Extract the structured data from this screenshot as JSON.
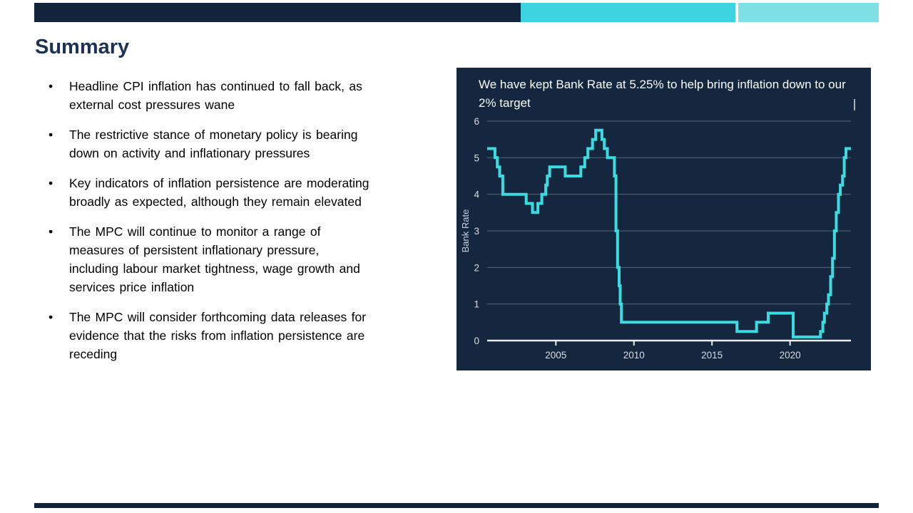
{
  "theme": {
    "navy": "#13233c",
    "teal": "#3dd4df",
    "teal_light": "#7ce0e5",
    "title_color": "#1d3253"
  },
  "slide": {
    "title": "Summary",
    "bullet_char": "•",
    "bullets": [
      "Headline CPI inflation has continued to fall back, as\nexternal cost pressures wane",
      "The restrictive stance of monetary policy is bearing\ndown on activity and inflationary pressures",
      "Key indicators of inflation persistence are moderating\nbroadly as expected, although they remain elevated",
      "The MPC will continue to monitor a range of\nmeasures of persistent inflationary pressure,\nincluding labour market tightness, wage growth and\nservices price inflation",
      "The MPC will consider forthcoming data releases for\nevidence that the risks from inflation persistence are\nreceding"
    ]
  },
  "chart_data": {
    "type": "line",
    "step": "after",
    "title": "We have kept Bank Rate at 5.25% to help bring inflation down to our 2% target",
    "ylabel": "Bank Rate",
    "series_name": "Bank Rate",
    "background": "#15273f",
    "line_color": "#3adce1",
    "grid_color": "rgba(255,255,255,0.28)",
    "axis_color": "#e9edf1",
    "xlim": [
      2000.6,
      2023.9
    ],
    "ylim": [
      0,
      6
    ],
    "yticks": [
      0,
      1,
      2,
      3,
      4,
      5,
      6
    ],
    "xticks": [
      2005,
      2010,
      2015,
      2020
    ],
    "points": [
      [
        2000.6,
        5.25
      ],
      [
        2001.1,
        5.0
      ],
      [
        2001.25,
        4.75
      ],
      [
        2001.4,
        4.5
      ],
      [
        2001.6,
        4.0
      ],
      [
        2003.1,
        3.75
      ],
      [
        2003.5,
        3.5
      ],
      [
        2003.85,
        3.75
      ],
      [
        2004.1,
        4.0
      ],
      [
        2004.35,
        4.25
      ],
      [
        2004.45,
        4.5
      ],
      [
        2004.6,
        4.75
      ],
      [
        2005.6,
        4.5
      ],
      [
        2006.6,
        4.75
      ],
      [
        2006.85,
        5.0
      ],
      [
        2007.05,
        5.25
      ],
      [
        2007.35,
        5.5
      ],
      [
        2007.55,
        5.75
      ],
      [
        2007.95,
        5.5
      ],
      [
        2008.1,
        5.25
      ],
      [
        2008.3,
        5.0
      ],
      [
        2008.75,
        4.5
      ],
      [
        2008.85,
        3.0
      ],
      [
        2008.95,
        2.0
      ],
      [
        2009.05,
        1.5
      ],
      [
        2009.12,
        1.0
      ],
      [
        2009.2,
        0.5
      ],
      [
        2016.6,
        0.25
      ],
      [
        2017.85,
        0.5
      ],
      [
        2018.6,
        0.75
      ],
      [
        2020.2,
        0.1
      ],
      [
        2021.95,
        0.25
      ],
      [
        2022.1,
        0.5
      ],
      [
        2022.2,
        0.75
      ],
      [
        2022.35,
        1.0
      ],
      [
        2022.46,
        1.25
      ],
      [
        2022.6,
        1.75
      ],
      [
        2022.72,
        2.25
      ],
      [
        2022.84,
        3.0
      ],
      [
        2022.96,
        3.5
      ],
      [
        2023.1,
        4.0
      ],
      [
        2023.22,
        4.25
      ],
      [
        2023.36,
        4.5
      ],
      [
        2023.47,
        5.0
      ],
      [
        2023.58,
        5.25
      ],
      [
        2023.9,
        5.25
      ]
    ]
  }
}
